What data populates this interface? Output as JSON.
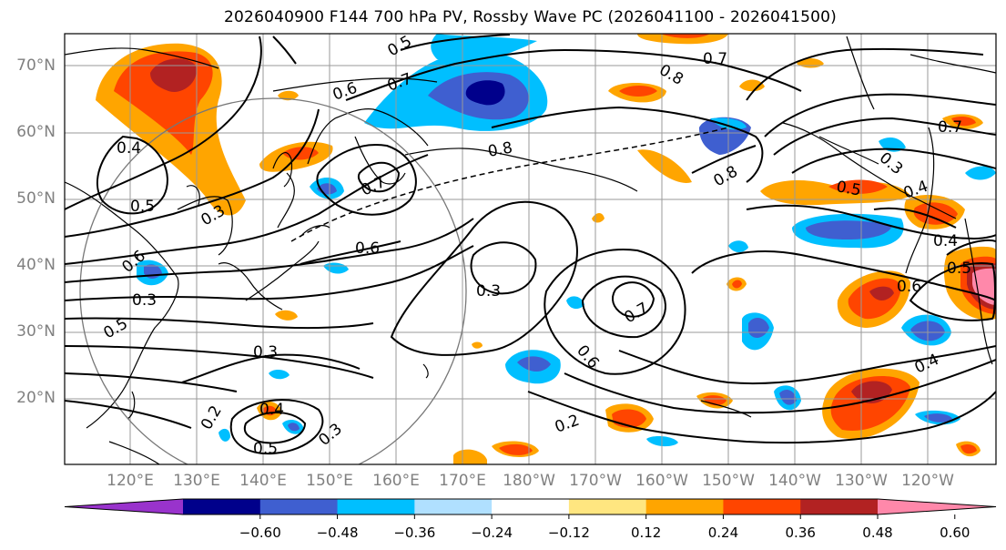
{
  "title": "2026040900 F144 700 hPa PV, Rossby Wave PC (2026041100 - 2026041500)",
  "lat_labels": [
    "70°N",
    "60°N",
    "50°N",
    "40°N",
    "30°N",
    "20°N"
  ],
  "lon_labels": [
    "120°E",
    "130°E",
    "140°E",
    "150°E",
    "160°E",
    "170°E",
    "180°W",
    "170°W",
    "160°W",
    "150°W",
    "140°W",
    "130°W",
    "120°W"
  ],
  "contour_labels": {
    "c1": "0.5",
    "c2": "0.4",
    "c3": "0.5",
    "c4": "0.3",
    "c5": "0.6",
    "c6": "0.7",
    "c7": "0.8",
    "c8": "0.7",
    "c9": "0.8",
    "c10": "0.7",
    "c11": "0.8",
    "c12": "0.6",
    "c13": "0.3",
    "c14": "0.7",
    "c15": "0.6",
    "c16": "0.3",
    "c17": "0.2",
    "c18": "0.4",
    "c19": "0.5",
    "c20": "0.3",
    "c21": "0.5",
    "c22": "0.6",
    "c23": "0.4",
    "c24": "0.3",
    "c25": "0.5",
    "c26": "0.4",
    "c27": "0.2",
    "c28": "0.3",
    "c29": "0.6",
    "c30": "0.5",
    "c31": "0.4",
    "c32": "0.7"
  },
  "colorbar": {
    "ticks": [
      "−0.60",
      "−0.48",
      "−0.36",
      "−0.24",
      "−0.12",
      "0.12",
      "0.24",
      "0.36",
      "0.48",
      "0.60"
    ],
    "colors": [
      "#9933cc",
      "#00008b",
      "#3f5fd0",
      "#00bfff",
      "#b0e0ff",
      "#ffffff",
      "#ffe680",
      "#ffa500",
      "#ff4500",
      "#b22222",
      "#ff88aa"
    ]
  }
}
